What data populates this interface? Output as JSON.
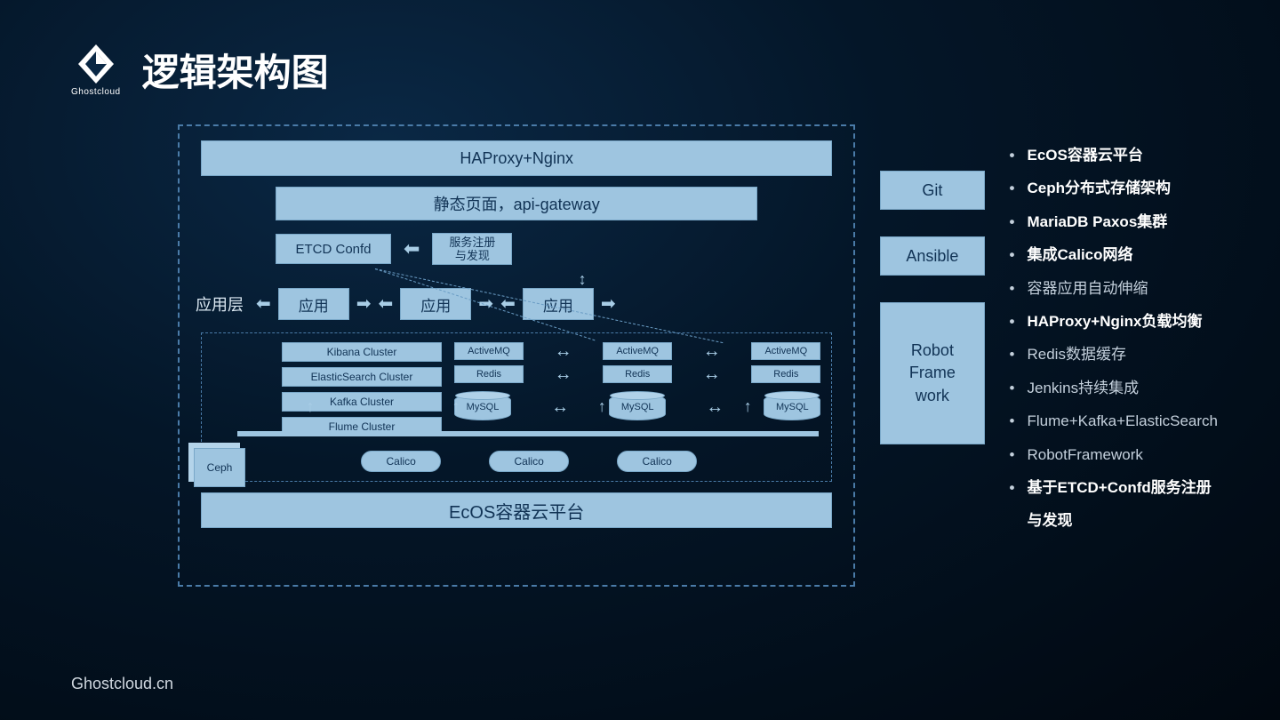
{
  "brand": {
    "name": "Ghostcloud",
    "footer": "Ghostcloud.cn"
  },
  "title": "逻辑架构图",
  "colors": {
    "background_center": "#0a2845",
    "background_edge": "#010810",
    "box_fill": "#9ec5e0",
    "box_text": "#113355",
    "box_border": "#7aa8c8",
    "dash_border": "#4a7ba8",
    "arrow": "#a8cde6",
    "text_primary": "#ffffff",
    "text_muted": "#c4d0dc"
  },
  "diagram": {
    "type": "flowchart",
    "haproxy": "HAProxy+Nginx",
    "api_gateway": "静态页面，api-gateway",
    "etcd": "ETCD Confd",
    "service_reg": "服务注册\n与发现",
    "app_layer_label": "应用层",
    "apps": [
      "应用",
      "应用",
      "应用"
    ],
    "clusters": [
      "Kibana Cluster",
      "ElasticSearch Cluster",
      "Kafka Cluster",
      "Flume Cluster"
    ],
    "mq_row": [
      "ActiveMQ",
      "ActiveMQ",
      "ActiveMQ"
    ],
    "redis_row": [
      "Redis",
      "Redis",
      "Redis"
    ],
    "mysql_row": [
      "MySQL",
      "MySQL",
      "MySQL"
    ],
    "ceph": "Ceph",
    "calico_row": [
      "Calico",
      "Calico",
      "Calico"
    ],
    "ecos": "EcOS容器云平台"
  },
  "side": {
    "git": "Git",
    "ansible": "Ansible",
    "robot": "Robot Framework"
  },
  "bullets": [
    {
      "text": "EcOS容器云平台",
      "bold": true
    },
    {
      "text": "Ceph分布式存储架构",
      "bold": true
    },
    {
      "text": "MariaDB Paxos集群",
      "bold": true
    },
    {
      "text": "集成Calico网络",
      "bold": true
    },
    {
      "text": "容器应用自动伸缩",
      "bold": false
    },
    {
      "text": "HAProxy+Nginx负载均衡",
      "bold": true
    },
    {
      "text": "Redis数据缓存",
      "bold": false
    },
    {
      "text": "Jenkins持续集成",
      "bold": false
    },
    {
      "text": "Flume+Kafka+ElasticSearch",
      "bold": false
    },
    {
      "text": "RobotFramework",
      "bold": false
    },
    {
      "text": "基于ETCD+Confd服务注册与发现",
      "bold": true
    }
  ]
}
